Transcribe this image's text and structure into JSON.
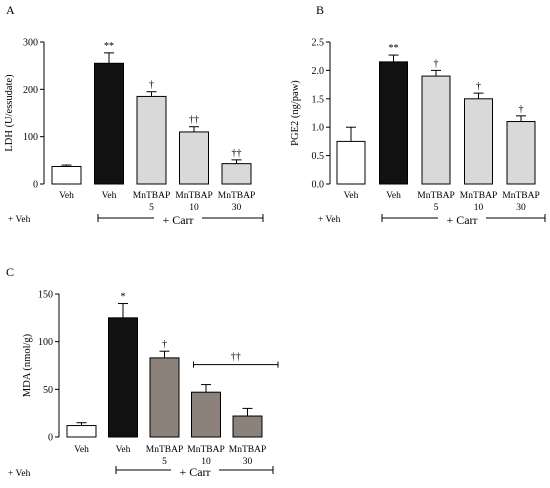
{
  "chart_data": [
    {
      "type": "bar",
      "panel": "A",
      "ylabel": "LDH (U/essudate)",
      "ylim": [
        0,
        300
      ],
      "yticks": [
        0,
        100,
        200,
        300
      ],
      "categories": [
        {
          "top": "Veh",
          "bottom": ""
        },
        {
          "top": "Veh",
          "bottom": ""
        },
        {
          "top": "MnTBAP",
          "bottom": "5"
        },
        {
          "top": "MnTBAP",
          "bottom": "10"
        },
        {
          "top": "MnTBAP",
          "bottom": "30"
        }
      ],
      "values": [
        37,
        255,
        185,
        110,
        43
      ],
      "errors": [
        3,
        22,
        10,
        11,
        8
      ],
      "significance": [
        "",
        "**",
        "†",
        "††",
        "††"
      ],
      "bar_colors": [
        "#ffffff",
        "#111111",
        "#d9d9d9",
        "#d9d9d9",
        "#d9d9d9"
      ],
      "veh_label": "+ Veh",
      "group_label": "+ Carr"
    },
    {
      "type": "bar",
      "panel": "B",
      "ylabel": "PGE2 (ng/paw)",
      "ylim": [
        0,
        2.5
      ],
      "yticks": [
        "0.0",
        "0.5",
        "1.0",
        "1.5",
        "2.0",
        "2.5"
      ],
      "categories": [
        {
          "top": "Veh",
          "bottom": ""
        },
        {
          "top": "Veh",
          "bottom": ""
        },
        {
          "top": "MnTBAP",
          "bottom": "5"
        },
        {
          "top": "MnTBAP",
          "bottom": "10"
        },
        {
          "top": "MnTBAP",
          "bottom": "30"
        }
      ],
      "values": [
        0.75,
        2.15,
        1.9,
        1.5,
        1.1
      ],
      "errors": [
        0.25,
        0.12,
        0.1,
        0.1,
        0.1
      ],
      "significance": [
        "",
        "**",
        "†",
        "†",
        "†"
      ],
      "bar_colors": [
        "#ffffff",
        "#111111",
        "#d9d9d9",
        "#d9d9d9",
        "#d9d9d9"
      ],
      "veh_label": "+ Veh",
      "group_label": "+ Carr"
    },
    {
      "type": "bar",
      "panel": "C",
      "ylabel": "MDA (nmol/g)",
      "ylim": [
        0,
        150
      ],
      "yticks": [
        0,
        50,
        100,
        150
      ],
      "categories": [
        {
          "top": "Veh",
          "bottom": ""
        },
        {
          "top": "Veh",
          "bottom": ""
        },
        {
          "top": "MnTBAP",
          "bottom": "5"
        },
        {
          "top": "MnTBAP",
          "bottom": "10"
        },
        {
          "top": "MnTBAP",
          "bottom": "30"
        }
      ],
      "values": [
        12,
        125,
        83,
        47,
        22
      ],
      "errors": [
        3,
        15,
        7,
        8,
        8
      ],
      "significance": [
        "",
        "*",
        "†",
        "",
        ""
      ],
      "bracket_label": "††",
      "bar_colors": [
        "#ffffff",
        "#111111",
        "#8c817b",
        "#8c817b",
        "#8c817b"
      ],
      "veh_label": "+ Veh",
      "group_label": "+ Carr"
    }
  ]
}
